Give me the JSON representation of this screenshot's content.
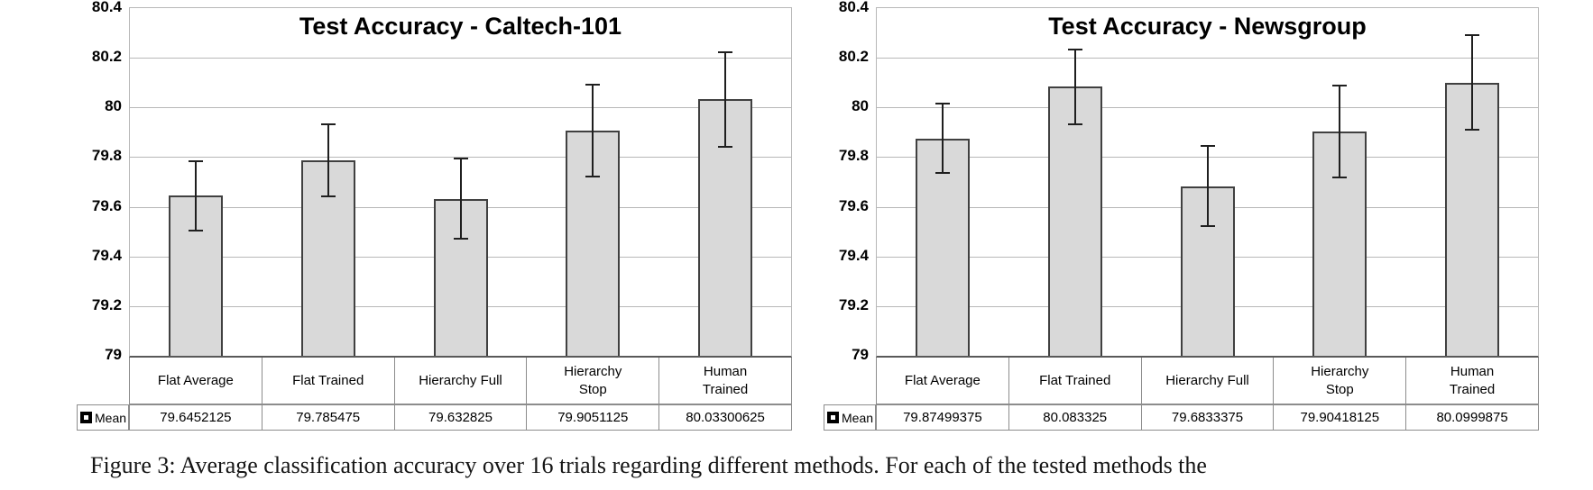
{
  "caption": {
    "text": "Figure 3: Average classification accuracy over 16 trials regarding different methods. For each of the tested methods the"
  },
  "chart_data": [
    {
      "type": "bar",
      "title": "Test Accuracy - Caltech-101",
      "categories": [
        "Flat Average",
        "Flat Trained",
        "Hierarchy Full",
        "Hierarchy Stop",
        "Human Trained"
      ],
      "categories_display": [
        [
          "Flat Average"
        ],
        [
          "Flat Trained"
        ],
        [
          "Hierarchy Full"
        ],
        [
          "Hierarchy",
          "Stop"
        ],
        [
          "Human",
          "Trained"
        ]
      ],
      "values": [
        79.6452125,
        79.785475,
        79.632825,
        79.9051125,
        80.03300625
      ],
      "errors": [
        0.14,
        0.145,
        0.16,
        0.185,
        0.19
      ],
      "mean_row": [
        "79.6452125",
        "79.785475",
        "79.632825",
        "79.9051125",
        "80.03300625"
      ],
      "legend_label": "Mean",
      "ylim": [
        79,
        80.4
      ],
      "ytick_step": 0.2,
      "yticks": [
        "80.4",
        "80.2",
        "80",
        "79.8",
        "79.6",
        "79.4",
        "79.2",
        "79"
      ],
      "grid": true,
      "legend_position": "bottom-left-table",
      "bar_fill": "#d9d9d9",
      "bar_border": "#404040"
    },
    {
      "type": "bar",
      "title": "Test Accuracy - Newsgroup",
      "categories": [
        "Flat Average",
        "Flat Trained",
        "Hierarchy Full",
        "Hierarchy Stop",
        "Human Trained"
      ],
      "categories_display": [
        [
          "Flat Average"
        ],
        [
          "Flat Trained"
        ],
        [
          "Hierarchy Full"
        ],
        [
          "Hierarchy",
          "Stop"
        ],
        [
          "Human",
          "Trained"
        ]
      ],
      "values": [
        79.87499375,
        80.083325,
        79.6833375,
        79.90418125,
        80.0999875
      ],
      "errors": [
        0.14,
        0.15,
        0.16,
        0.185,
        0.19
      ],
      "mean_row": [
        "79.87499375",
        "80.083325",
        "79.6833375",
        "79.90418125",
        "80.0999875"
      ],
      "legend_label": "Mean",
      "ylim": [
        79,
        80.4
      ],
      "ytick_step": 0.2,
      "yticks": [
        "80.4",
        "80.2",
        "80",
        "79.8",
        "79.6",
        "79.4",
        "79.2",
        "79"
      ],
      "grid": true,
      "legend_position": "bottom-left-table",
      "bar_fill": "#d9d9d9",
      "bar_border": "#404040"
    }
  ]
}
